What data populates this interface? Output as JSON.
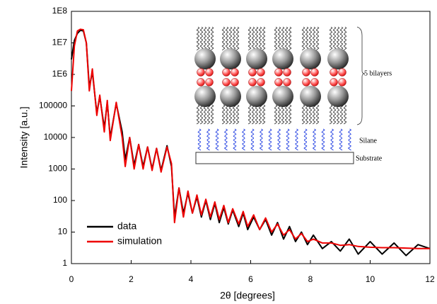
{
  "chart_data": {
    "type": "line",
    "x_label": "2θ  [degrees]",
    "y_label": "Intensity  [a.u.]",
    "x": [
      0,
      0.1,
      0.2,
      0.3,
      0.4,
      0.5,
      0.6,
      0.7,
      0.85,
      0.95,
      1.1,
      1.2,
      1.3,
      1.5,
      1.7,
      1.8,
      1.95,
      2.1,
      2.25,
      2.4,
      2.55,
      2.7,
      2.85,
      3.0,
      3.2,
      3.35,
      3.45,
      3.6,
      3.75,
      3.9,
      4.05,
      4.2,
      4.35,
      4.5,
      4.65,
      4.8,
      4.95,
      5.1,
      5.25,
      5.4,
      5.6,
      5.75,
      5.9,
      6.1,
      6.3,
      6.5,
      6.7,
      6.9,
      7.1,
      7.3,
      7.5,
      7.7,
      7.9,
      8.1,
      8.4,
      8.7,
      9.0,
      9.3,
      9.6,
      10.0,
      10.4,
      10.8,
      11.2,
      11.6,
      12.0
    ],
    "series": [
      {
        "name": "data",
        "color": "#000000",
        "values": [
          3000000,
          12000000,
          20000000,
          25000000,
          24000000,
          10000000,
          400000,
          1200000,
          60000,
          200000,
          20000,
          130000,
          10000,
          120000,
          15000,
          2000,
          10000,
          1300,
          6000,
          1200,
          5000,
          1000,
          4500,
          900,
          5500,
          1200,
          30,
          250,
          40,
          170,
          40,
          130,
          30,
          100,
          25,
          80,
          20,
          60,
          18,
          50,
          15,
          40,
          12,
          30,
          12,
          25,
          8,
          20,
          6,
          15,
          5,
          10,
          4,
          8,
          3,
          5,
          2.5,
          6,
          2,
          5,
          2,
          4.5,
          1.8,
          4,
          3
        ]
      },
      {
        "name": "simulation",
        "color": "#ee0000",
        "values": [
          300000,
          8000000,
          24000000,
          27000000,
          26000000,
          10000000,
          300000,
          1500000,
          50000,
          220000,
          15000,
          150000,
          8000,
          130000,
          10000,
          1200,
          10000,
          1000,
          6000,
          1000,
          5000,
          900,
          4500,
          800,
          5000,
          1500,
          20,
          250,
          30,
          200,
          40,
          150,
          35,
          110,
          30,
          90,
          25,
          70,
          20,
          55,
          18,
          45,
          15,
          35,
          12,
          28,
          10,
          18,
          8,
          12,
          6,
          9,
          5,
          6,
          4.5,
          4.5,
          3.8,
          4,
          3.5,
          3.3,
          3.2,
          3.2,
          3.1,
          3,
          3
        ]
      }
    ],
    "xlim": [
      0,
      12
    ],
    "xticks": [
      0,
      2,
      4,
      6,
      8,
      10,
      12
    ],
    "ylim": [
      1,
      100000000
    ],
    "log_y": true,
    "yticks": [
      1,
      10,
      100,
      1000,
      10000,
      100000,
      {
        "value": 1000000,
        "label": "1E6"
      },
      {
        "value": 10000000,
        "label": "1E7"
      },
      {
        "value": 100000000,
        "label": "1E8"
      }
    ],
    "legend": "lower left"
  },
  "inset": {
    "bilayers": "5 bilayers",
    "silane": "Silane",
    "substrate": "Substrate"
  }
}
